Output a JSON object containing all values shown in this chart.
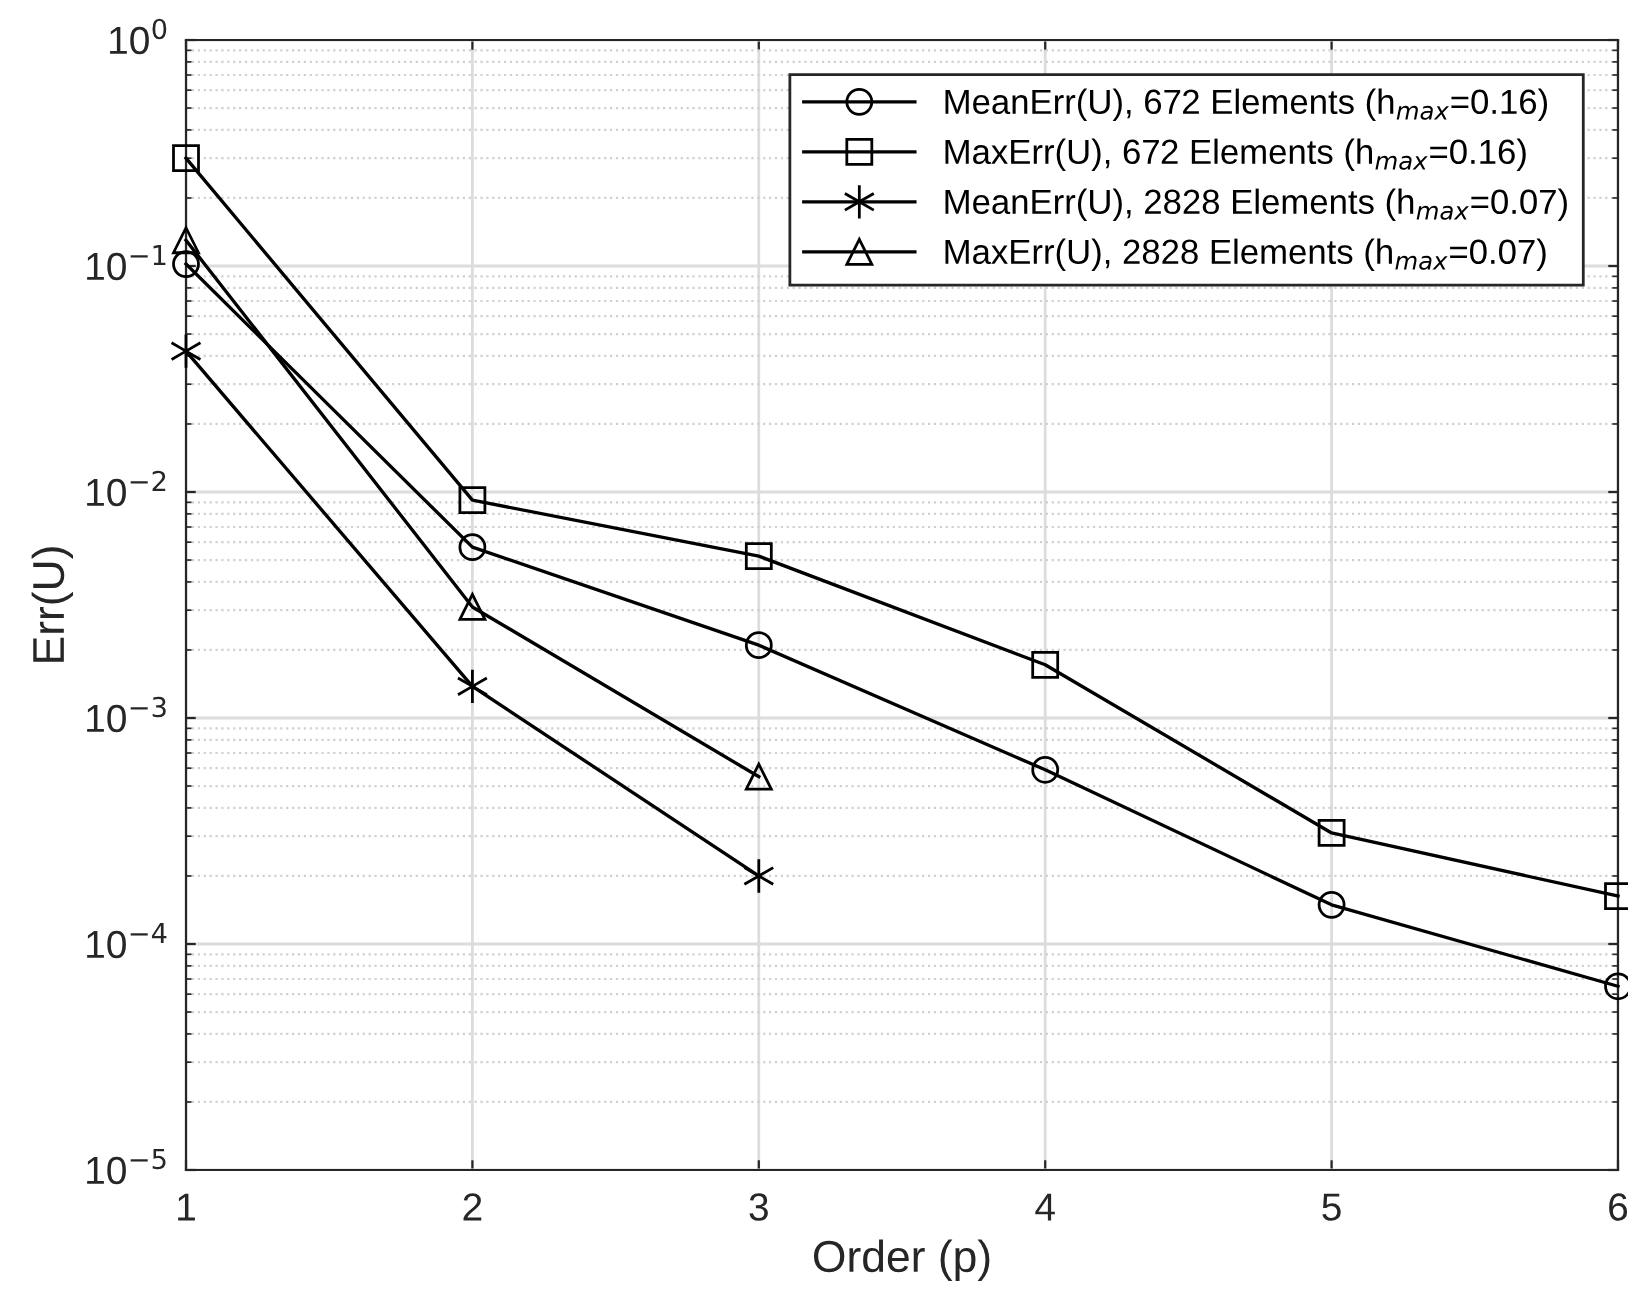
{
  "chart_data": {
    "type": "line",
    "xlabel": "Order (p)",
    "ylabel": "Err(U)",
    "x": [
      1,
      2,
      3,
      4,
      5,
      6
    ],
    "series": [
      {
        "name": "MeanErr(U), 672 Elements (h$_{max}$=0.16)",
        "color": "#000000",
        "marker": "circle",
        "values": [
          0.102,
          0.0057,
          0.0021,
          0.00059,
          0.000149,
          6.5e-05
        ]
      },
      {
        "name": "MaxErr(U), 672 Elements (h$_{max}$=0.16)",
        "color": "#000000",
        "marker": "square",
        "values": [
          0.3,
          0.0092,
          0.0052,
          0.00172,
          0.00031,
          0.000163
        ]
      },
      {
        "name": "MeanErr(U), 2828 Elements (h$_{max}$=0.07)",
        "color": "#000000",
        "marker": "cross",
        "values": [
          0.042,
          0.00138,
          0.0002,
          null,
          null,
          null
        ]
      },
      {
        "name": "MaxErr(U), 2828 Elements (h$_{max}$=0.07)",
        "color": "#000000",
        "marker": "triangle",
        "values": [
          0.13,
          0.0031,
          0.00055,
          null,
          null,
          null
        ]
      }
    ],
    "log": "y",
    "xlim": [
      1,
      6
    ],
    "xticks": [
      1,
      2,
      3,
      4,
      5,
      6
    ],
    "ylim": [
      1e-05,
      1
    ],
    "yticks": [
      {
        "value": 1e-05,
        "label": "10$^{−5}$"
      },
      {
        "value": 0.0001,
        "label": "10$^{−4}$"
      },
      {
        "value": 0.001,
        "label": "10$^{−3}$"
      },
      {
        "value": 0.01,
        "label": "10$^{−2}$"
      },
      {
        "value": 0.1,
        "label": "10$^{−1}$"
      },
      {
        "value": 1,
        "label": "10$^{0}$"
      }
    ],
    "grid": true,
    "legend": "top right",
    "line_style": "solid"
  }
}
